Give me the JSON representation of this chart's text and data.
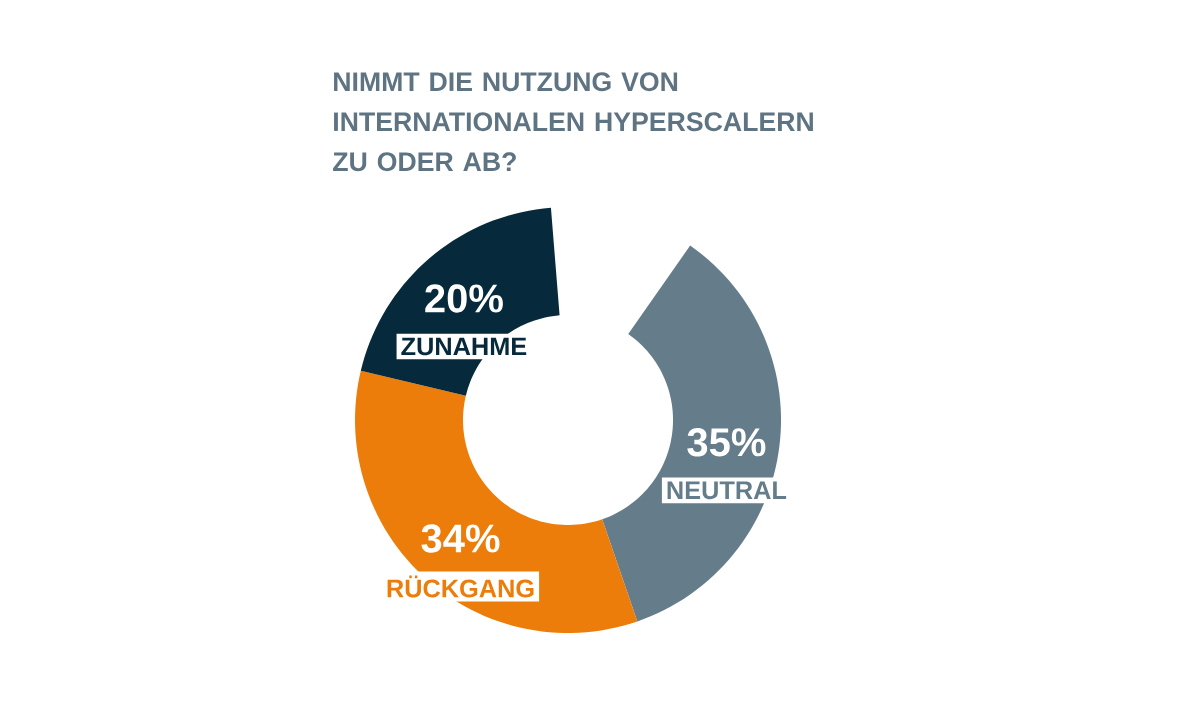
{
  "chart_data": {
    "type": "donut",
    "title": "NIMMT DIE NUTZUNG VON **INTERNATIONALEN HYPERSCALERN** ZU ODER AB?",
    "categories": [
      "NEUTRAL",
      "RÜCKGANG",
      "ZUNAHME"
    ],
    "values": [
      35,
      34,
      20
    ],
    "colors": [
      "#657c8a",
      "#ec7d0a",
      "#062a3b"
    ],
    "value_labels": [
      "35%",
      "34%",
      "20%"
    ]
  }
}
